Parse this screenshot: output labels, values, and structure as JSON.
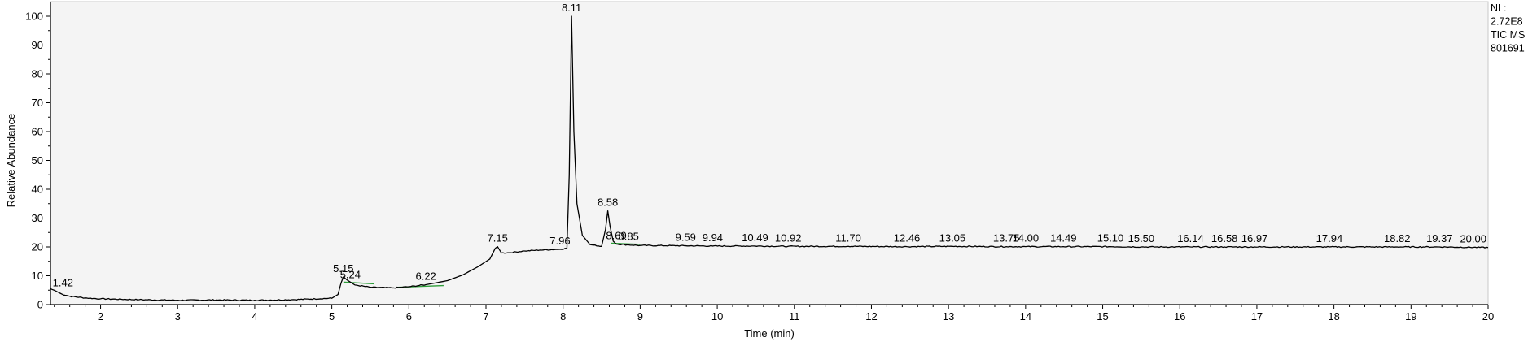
{
  "chart_data": {
    "type": "line",
    "xlabel": "Time (min)",
    "ylabel": "Relative Abundance",
    "xlim": [
      1.35,
      20.0
    ],
    "ylim": [
      0,
      100
    ],
    "x_ticks": [
      2,
      3,
      4,
      5,
      6,
      7,
      8,
      9,
      10,
      11,
      12,
      13,
      14,
      15,
      16,
      17,
      18,
      19,
      20
    ],
    "y_ticks": [
      0,
      10,
      20,
      30,
      40,
      50,
      60,
      70,
      80,
      90,
      100
    ],
    "grid": false,
    "info": [
      "NL:",
      "2.72E8",
      "TIC  MS",
      "801691"
    ],
    "series": [
      {
        "color": "#000000",
        "points": [
          [
            1.35,
            5.5
          ],
          [
            1.42,
            4.7
          ],
          [
            1.5,
            3.6
          ],
          [
            1.6,
            2.9
          ],
          [
            1.8,
            2.3
          ],
          [
            2.0,
            2.0
          ],
          [
            2.5,
            1.7
          ],
          [
            3.0,
            1.5
          ],
          [
            3.5,
            1.6
          ],
          [
            4.0,
            1.5
          ],
          [
            4.5,
            1.7
          ],
          [
            5.0,
            2.2
          ],
          [
            5.08,
            3.5
          ],
          [
            5.12,
            7.5
          ],
          [
            5.15,
            9.6
          ],
          [
            5.2,
            8.5
          ],
          [
            5.3,
            6.8
          ],
          [
            5.5,
            6.0
          ],
          [
            5.8,
            5.8
          ],
          [
            6.0,
            6.2
          ],
          [
            6.22,
            6.9
          ],
          [
            6.5,
            8.3
          ],
          [
            6.7,
            10.3
          ],
          [
            6.9,
            13.2
          ],
          [
            7.05,
            15.8
          ],
          [
            7.12,
            19.5
          ],
          [
            7.15,
            20.1
          ],
          [
            7.2,
            17.9
          ],
          [
            7.3,
            18.0
          ],
          [
            7.5,
            18.6
          ],
          [
            7.7,
            18.9
          ],
          [
            7.96,
            19.2
          ],
          [
            8.05,
            19.5
          ],
          [
            8.08,
            45.0
          ],
          [
            8.11,
            100.0
          ],
          [
            8.14,
            60.0
          ],
          [
            8.18,
            35.0
          ],
          [
            8.25,
            24.0
          ],
          [
            8.35,
            20.8
          ],
          [
            8.5,
            20.2
          ],
          [
            8.55,
            26.0
          ],
          [
            8.58,
            32.5
          ],
          [
            8.61,
            27.0
          ],
          [
            8.65,
            22.0
          ],
          [
            8.69,
            21.0
          ],
          [
            8.85,
            20.7
          ],
          [
            9.0,
            20.5
          ],
          [
            9.59,
            20.4
          ],
          [
            9.94,
            20.3
          ],
          [
            10.49,
            20.3
          ],
          [
            10.92,
            20.2
          ],
          [
            11.7,
            20.2
          ],
          [
            12.46,
            20.1
          ],
          [
            13.05,
            20.2
          ],
          [
            13.75,
            20.1
          ],
          [
            14.0,
            20.1
          ],
          [
            14.49,
            20.1
          ],
          [
            15.1,
            20.1
          ],
          [
            15.5,
            20.0
          ],
          [
            16.14,
            20.0
          ],
          [
            16.58,
            20.0
          ],
          [
            16.97,
            20.0
          ],
          [
            17.94,
            20.0
          ],
          [
            18.82,
            20.0
          ],
          [
            19.37,
            20.0
          ],
          [
            20.0,
            19.8
          ]
        ]
      }
    ],
    "baseline_segments": [
      [
        [
          5.15,
          7.8
        ],
        [
          5.55,
          7.2
        ]
      ],
      [
        [
          5.85,
          6.0
        ],
        [
          6.45,
          6.6
        ]
      ],
      [
        [
          8.62,
          21.3
        ],
        [
          9.0,
          20.9
        ]
      ]
    ],
    "peaks": [
      {
        "label": "1.42",
        "x": 1.42,
        "y": 4.7
      },
      {
        "label": "5.15",
        "x": 5.15,
        "y": 9.6
      },
      {
        "label": "5.24",
        "x": 5.24,
        "y": 7.4
      },
      {
        "label": "6.22",
        "x": 6.22,
        "y": 6.9
      },
      {
        "label": "7.15",
        "x": 7.15,
        "y": 20.1
      },
      {
        "label": "7.96",
        "x": 7.96,
        "y": 19.2
      },
      {
        "label": "8.11",
        "x": 8.11,
        "y": 100.0
      },
      {
        "label": "8.58",
        "x": 8.58,
        "y": 32.5
      },
      {
        "label": "8.69",
        "x": 8.69,
        "y": 21.0
      },
      {
        "label": "8.85",
        "x": 8.85,
        "y": 20.7
      },
      {
        "label": "9.59",
        "x": 9.59,
        "y": 20.4
      },
      {
        "label": "9.94",
        "x": 9.94,
        "y": 20.3
      },
      {
        "label": "10.49",
        "x": 10.49,
        "y": 20.3
      },
      {
        "label": "10.92",
        "x": 10.92,
        "y": 20.2
      },
      {
        "label": "11.70",
        "x": 11.7,
        "y": 20.2
      },
      {
        "label": "12.46",
        "x": 12.46,
        "y": 20.1
      },
      {
        "label": "13.05",
        "x": 13.05,
        "y": 20.2
      },
      {
        "label": "13.75",
        "x": 13.75,
        "y": 20.1
      },
      {
        "label": "14.00",
        "x": 14.0,
        "y": 20.1
      },
      {
        "label": "14.49",
        "x": 14.49,
        "y": 20.1
      },
      {
        "label": "15.10",
        "x": 15.1,
        "y": 20.1
      },
      {
        "label": "15.50",
        "x": 15.5,
        "y": 20.0
      },
      {
        "label": "16.14",
        "x": 16.14,
        "y": 20.0
      },
      {
        "label": "16.58",
        "x": 16.58,
        "y": 20.0
      },
      {
        "label": "16.97",
        "x": 16.97,
        "y": 20.0
      },
      {
        "label": "17.94",
        "x": 17.94,
        "y": 20.0
      },
      {
        "label": "18.82",
        "x": 18.82,
        "y": 20.0
      },
      {
        "label": "19.37",
        "x": 19.37,
        "y": 20.0
      },
      {
        "label": "20.00",
        "x": 20.0,
        "y": 19.8
      }
    ],
    "colors": {
      "trace": "#000000",
      "baseline": "#2e9e3a",
      "plot_background": "#f4f4f4",
      "axis": "#000000"
    }
  }
}
